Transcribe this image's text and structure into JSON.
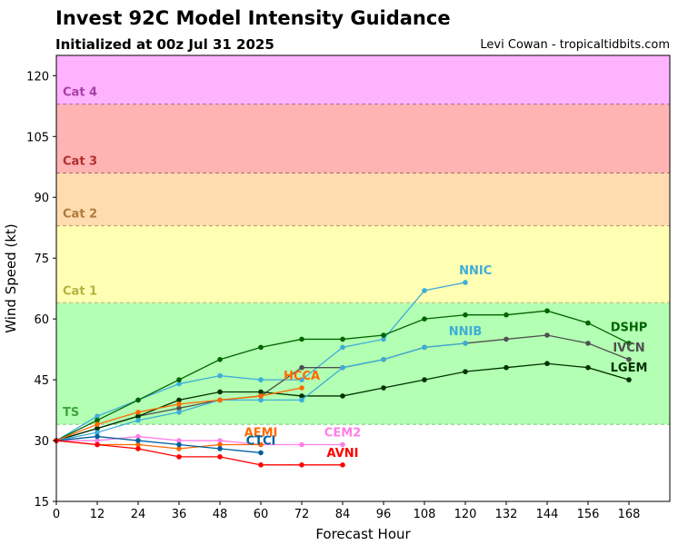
{
  "header": {
    "title": "Invest 92C Model Intensity Guidance",
    "subtitle": "Initialized at 00z Jul 31 2025",
    "credit": "Levi Cowan - tropicaltidbits.com"
  },
  "chart_data": {
    "type": "line",
    "title": "Invest 92C Model Intensity Guidance",
    "subtitle": "Initialized at 00z Jul 31 2025",
    "xlabel": "Forecast Hour",
    "ylabel": "Wind Speed (kt)",
    "xlim": [
      0,
      180
    ],
    "ylim": [
      15,
      125
    ],
    "xticks": [
      0,
      12,
      24,
      36,
      48,
      60,
      72,
      84,
      96,
      108,
      120,
      132,
      144,
      156,
      168
    ],
    "yticks": [
      15,
      30,
      45,
      60,
      75,
      90,
      105,
      120
    ],
    "grid": false,
    "bands": [
      {
        "name": "TS",
        "from": 34,
        "to": 64,
        "fill": "#b3ffb3",
        "line": "#7fcf7f",
        "label_color": "#3ea53e"
      },
      {
        "name": "Cat 1",
        "from": 64,
        "to": 83,
        "fill": "#ffffb3",
        "line": "#c8c07a",
        "label_color": "#b3b33f"
      },
      {
        "name": "Cat 2",
        "from": 83,
        "to": 96,
        "fill": "#ffdcb0",
        "line": "#c9a070",
        "label_color": "#b07a3a"
      },
      {
        "name": "Cat 3",
        "from": 96,
        "to": 113,
        "fill": "#ffb3b3",
        "line": "#b07070",
        "label_color": "#b03030"
      },
      {
        "name": "Cat 4",
        "from": 113,
        "to": 125,
        "fill": "#ffb3ff",
        "line": "#b070b0",
        "label_color": "#a840a8"
      }
    ],
    "series": [
      {
        "name": "NNIC",
        "color": "#3fadd9",
        "x": [
          0,
          12,
          24,
          36,
          48,
          60,
          72,
          84,
          96,
          108,
          120
        ],
        "values": [
          30,
          36,
          40,
          44,
          46,
          45,
          45,
          53,
          55,
          67,
          69
        ],
        "label_at": [
          123,
          71
        ]
      },
      {
        "name": "DSHP",
        "color": "#006400",
        "x": [
          0,
          12,
          24,
          36,
          48,
          60,
          72,
          84,
          96,
          108,
          120,
          132,
          144,
          156,
          168
        ],
        "values": [
          30,
          35,
          40,
          45,
          50,
          53,
          55,
          55,
          56,
          60,
          61,
          61,
          62,
          59,
          54
        ],
        "label_at": [
          168,
          57
        ]
      },
      {
        "name": "IVCN",
        "color": "#505050",
        "x": [
          0,
          12,
          24,
          36,
          48,
          60,
          72,
          84,
          96,
          108,
          120,
          132,
          144,
          156,
          168
        ],
        "values": [
          30,
          33,
          36,
          38,
          40,
          41,
          48,
          48,
          50,
          53,
          54,
          55,
          56,
          54,
          50
        ],
        "label_at": [
          168,
          52
        ]
      },
      {
        "name": "LGEM",
        "color": "#003300",
        "x": [
          0,
          12,
          24,
          36,
          48,
          60,
          72,
          84,
          96,
          108,
          120,
          132,
          144,
          156,
          168
        ],
        "values": [
          30,
          33,
          36,
          40,
          42,
          42,
          41,
          41,
          43,
          45,
          47,
          48,
          49,
          48,
          45
        ],
        "label_at": [
          168,
          47
        ]
      },
      {
        "name": "NNIB",
        "color": "#3fadd9",
        "x": [
          0,
          12,
          24,
          36,
          48,
          60,
          72,
          84,
          96,
          108,
          120
        ],
        "values": [
          30,
          32,
          35,
          37,
          40,
          40,
          40,
          48,
          50,
          53,
          54
        ],
        "label_at": [
          120,
          56
        ]
      },
      {
        "name": "HCCA",
        "color": "#ff6a00",
        "x": [
          0,
          12,
          24,
          36,
          48,
          60,
          72
        ],
        "values": [
          30,
          34,
          37,
          39,
          40,
          41,
          43
        ],
        "label_at": [
          72,
          45
        ]
      },
      {
        "name": "CEM2",
        "color": "#ff7fe6",
        "x": [
          0,
          12,
          24,
          36,
          48,
          60,
          72,
          84
        ],
        "values": [
          30,
          30,
          31,
          30,
          30,
          29,
          29,
          29
        ],
        "label_at": [
          84,
          31
        ]
      },
      {
        "name": "AEMI",
        "color": "#ff6a00",
        "x": [
          0,
          12,
          24,
          36,
          48,
          60
        ],
        "values": [
          30,
          29,
          29,
          28,
          29,
          29
        ],
        "label_at": [
          60,
          31
        ]
      },
      {
        "name": "CTCI",
        "color": "#00609c",
        "x": [
          0,
          12,
          24,
          36,
          48,
          60
        ],
        "values": [
          30,
          31,
          30,
          29,
          28,
          27
        ],
        "label_at": [
          60,
          29
        ]
      },
      {
        "name": "AVNI",
        "color": "#ff0000",
        "x": [
          0,
          12,
          24,
          36,
          48,
          60,
          72,
          84
        ],
        "values": [
          30,
          29,
          28,
          26,
          26,
          24,
          24,
          24
        ],
        "label_at": [
          84,
          26
        ]
      }
    ]
  }
}
